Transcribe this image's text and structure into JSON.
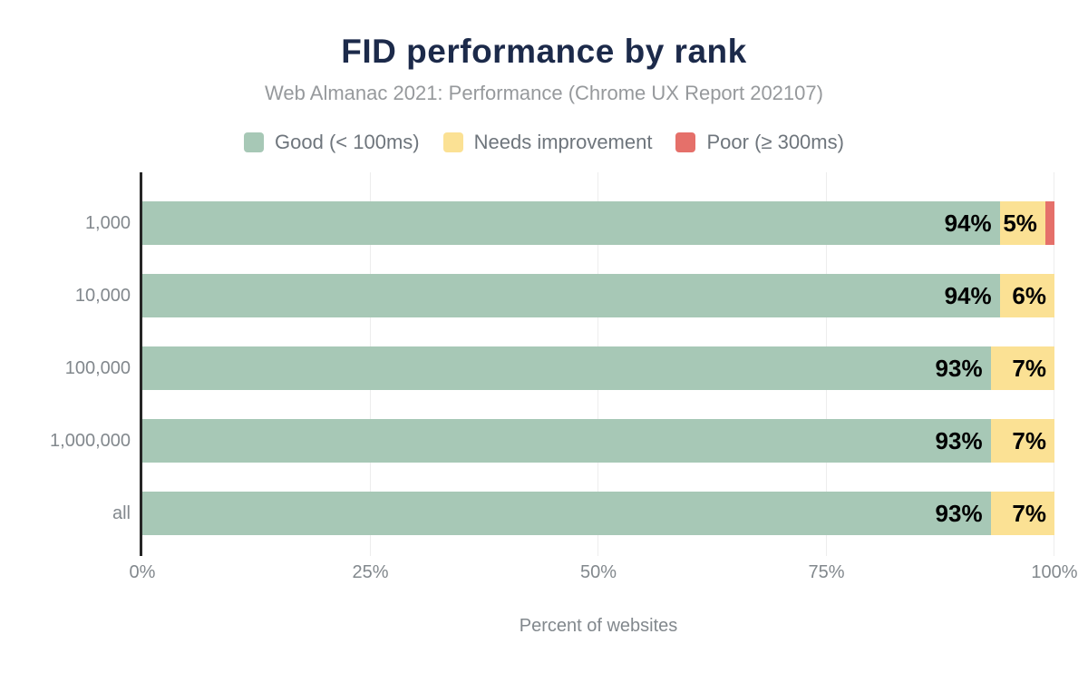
{
  "header": {
    "title": "FID performance by rank",
    "subtitle": "Web Almanac 2021: Performance (Chrome UX Report 202107)"
  },
  "colors": {
    "background": "#ffffff",
    "title": "#1c2a4a",
    "subtitle": "#96999c",
    "legend_text": "#6e757c",
    "axis_text": "#82888d",
    "data_label": "#000000",
    "gridline": "#ededed",
    "axis_line": "#262626"
  },
  "chart_data": {
    "type": "bar",
    "orientation": "horizontal",
    "stacked": true,
    "title": "FID performance by rank",
    "subtitle": "Web Almanac 2021: Performance (Chrome UX Report 202107)",
    "categories": [
      "1,000",
      "10,000",
      "100,000",
      "1,000,000",
      "all"
    ],
    "series": [
      {
        "key": "good",
        "name": "Good (< 100ms)",
        "color": "#a7c8b6",
        "values": [
          94,
          94,
          93,
          93,
          93
        ],
        "labels": [
          "94%",
          "94%",
          "93%",
          "93%",
          "93%"
        ]
      },
      {
        "key": "needs-improvement",
        "name": "Needs improvement",
        "color": "#fbe194",
        "values": [
          5,
          6,
          7,
          7,
          7
        ],
        "labels": [
          "5%",
          "6%",
          "7%",
          "7%",
          "7%"
        ]
      },
      {
        "key": "poor",
        "name": "Poor (≥ 300ms)",
        "color": "#e5706a",
        "values": [
          1,
          0,
          0,
          0,
          0
        ],
        "labels": [
          "",
          "",
          "",
          "",
          ""
        ]
      }
    ],
    "xlim": [
      0,
      100
    ],
    "x_ticks": [
      {
        "label": "0%",
        "pct": 0
      },
      {
        "label": "25%",
        "pct": 25
      },
      {
        "label": "50%",
        "pct": 50
      },
      {
        "label": "75%",
        "pct": 75
      },
      {
        "label": "100%",
        "pct": 100
      }
    ],
    "xlabel": "Percent of websites",
    "ylabel": "",
    "legend_position": "top",
    "grid": "vertical"
  }
}
